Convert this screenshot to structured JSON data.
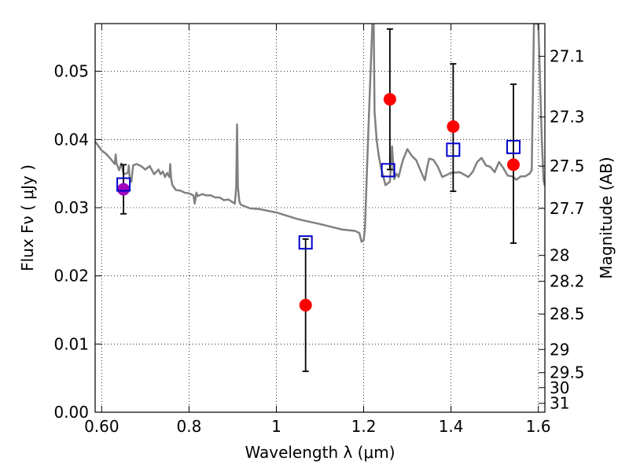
{
  "chart_data": {
    "type": "scatter",
    "xlabel": "Wavelength  λ (μm)",
    "ylabel": "Flux  Fν  ( μJy )",
    "ylabel_right": "Magnitude (AB)",
    "xlim": [
      0.585,
      1.615
    ],
    "ylim": [
      0.0,
      0.057
    ],
    "x_ticks": [
      0.6,
      0.8,
      1.0,
      1.2,
      1.4,
      1.6
    ],
    "x_tick_labels": [
      "0.60",
      "0.8",
      "1",
      "1.2",
      "1.4",
      "1.6"
    ],
    "y_ticks": [
      0.0,
      0.01,
      0.02,
      0.03,
      0.04,
      0.05
    ],
    "y_tick_labels": [
      "0.00",
      "0.01",
      "0.02",
      "0.03",
      "0.04",
      "0.05"
    ],
    "right_ticks": [
      {
        "label": "27.1",
        "flux": 0.0522
      },
      {
        "label": "27.3",
        "flux": 0.0433
      },
      {
        "label": "27.5",
        "flux": 0.0361
      },
      {
        "label": "27.7",
        "flux": 0.0299
      },
      {
        "label": "28",
        "flux": 0.023
      },
      {
        "label": "28.2",
        "flux": 0.0192
      },
      {
        "label": "28.5",
        "flux": 0.0144
      },
      {
        "label": "29",
        "flux": 0.0092
      },
      {
        "label": "29.5",
        "flux": 0.0058
      },
      {
        "label": "30",
        "flux": 0.0036
      },
      {
        "label": "31",
        "flux": 0.0013
      }
    ],
    "grid": true,
    "model_spectrum": {
      "color": "#808080",
      "x": [
        0.585,
        0.595,
        0.6,
        0.61,
        0.62,
        0.63,
        0.632,
        0.634,
        0.64,
        0.645,
        0.65,
        0.66,
        0.662,
        0.664,
        0.668,
        0.672,
        0.68,
        0.69,
        0.7,
        0.71,
        0.72,
        0.73,
        0.735,
        0.74,
        0.745,
        0.75,
        0.755,
        0.757,
        0.759,
        0.762,
        0.77,
        0.78,
        0.79,
        0.8,
        0.81,
        0.813,
        0.817,
        0.82,
        0.83,
        0.84,
        0.85,
        0.86,
        0.87,
        0.88,
        0.89,
        0.9,
        0.905,
        0.908,
        0.91,
        0.912,
        0.915,
        0.918,
        0.92,
        0.94,
        0.96,
        1.0,
        1.05,
        1.1,
        1.15,
        1.18,
        1.19,
        1.195,
        1.2,
        1.203,
        1.21,
        1.22,
        1.223,
        1.225,
        1.23,
        1.235,
        1.24,
        1.25,
        1.26,
        1.265,
        1.27,
        1.275,
        1.28,
        1.285,
        1.29,
        1.3,
        1.31,
        1.32,
        1.33,
        1.34,
        1.345,
        1.35,
        1.36,
        1.37,
        1.38,
        1.4,
        1.42,
        1.44,
        1.45,
        1.46,
        1.47,
        1.48,
        1.49,
        1.5,
        1.51,
        1.52,
        1.53,
        1.54,
        1.55,
        1.56,
        1.57,
        1.58,
        1.585,
        1.59,
        1.6,
        1.605,
        1.608,
        1.612,
        1.615
      ],
      "y": [
        0.0397,
        0.0388,
        0.0384,
        0.0379,
        0.0372,
        0.0364,
        0.0378,
        0.0365,
        0.0355,
        0.0365,
        0.0349,
        0.0351,
        0.0362,
        0.0345,
        0.0338,
        0.0362,
        0.0364,
        0.0361,
        0.0356,
        0.0361,
        0.0349,
        0.0356,
        0.0349,
        0.0353,
        0.0345,
        0.0351,
        0.0345,
        0.0364,
        0.0343,
        0.0333,
        0.0326,
        0.0325,
        0.0322,
        0.0321,
        0.0318,
        0.0306,
        0.0322,
        0.0317,
        0.032,
        0.0318,
        0.0318,
        0.0315,
        0.0315,
        0.0311,
        0.0312,
        0.0308,
        0.0306,
        0.033,
        0.0422,
        0.033,
        0.031,
        0.0305,
        0.0304,
        0.0299,
        0.0298,
        0.0293,
        0.0283,
        0.0276,
        0.0268,
        0.0266,
        0.0263,
        0.025,
        0.0252,
        0.027,
        0.04,
        0.057,
        0.057,
        0.044,
        0.0398,
        0.0374,
        0.0358,
        0.0333,
        0.0338,
        0.039,
        0.0342,
        0.035,
        0.0345,
        0.0358,
        0.037,
        0.0386,
        0.0376,
        0.037,
        0.0355,
        0.034,
        0.0358,
        0.0372,
        0.037,
        0.036,
        0.0345,
        0.0351,
        0.0352,
        0.0345,
        0.0353,
        0.0367,
        0.0373,
        0.0362,
        0.036,
        0.0352,
        0.0367,
        0.0358,
        0.0347,
        0.0346,
        0.0341,
        0.0346,
        0.0346,
        0.035,
        0.0355,
        0.057,
        0.057,
        0.0465,
        0.04,
        0.034,
        0.0332
      ]
    },
    "series": [
      {
        "marker": "circle",
        "color": "#ff0000",
        "x": [
          1.067,
          1.26,
          1.405,
          1.543
        ],
        "y": [
          0.0157,
          0.0459,
          0.0419,
          0.0363
        ],
        "y_err_low": [
          0.0097,
          0.0103,
          0.0095,
          0.0115
        ],
        "y_err_high": [
          0.0097,
          0.0103,
          0.0092,
          0.0118
        ]
      },
      {
        "marker": "circle",
        "color": "#a000c0",
        "x": [
          0.65
        ],
        "y": [
          0.0327
        ],
        "y_err_low": [
          0.0036
        ],
        "y_err_high": [
          0.0036
        ]
      },
      {
        "marker": "open-square",
        "color": "#0000cc",
        "x": [
          0.65,
          1.067,
          1.256,
          1.405,
          1.543
        ],
        "y": [
          0.0334,
          0.0249,
          0.0355,
          0.0385,
          0.0389
        ]
      }
    ]
  }
}
